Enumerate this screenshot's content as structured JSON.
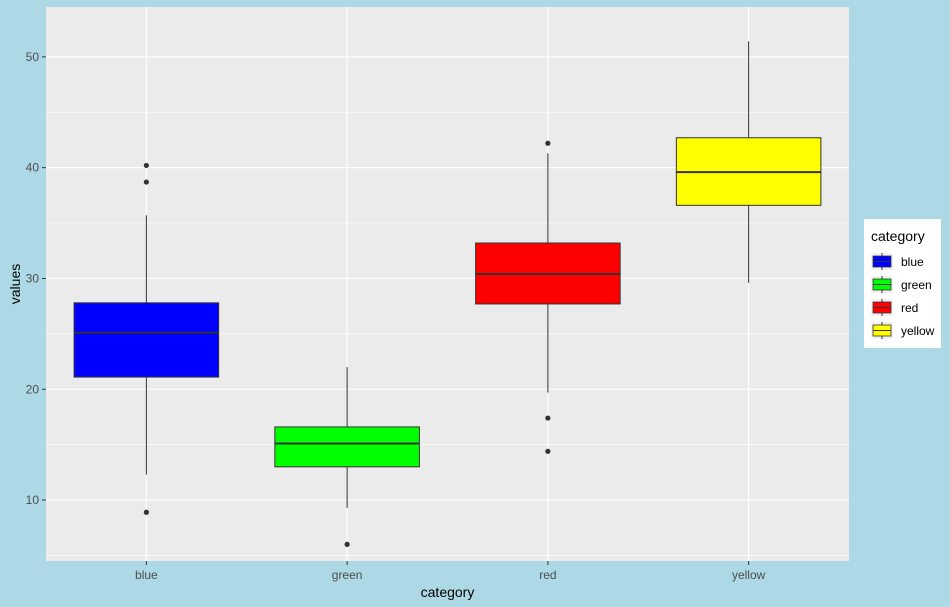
{
  "chart_data": {
    "type": "box",
    "xlabel": "category",
    "ylabel": "values",
    "categories": [
      "blue",
      "green",
      "red",
      "yellow"
    ],
    "ylim": [
      4.5,
      54.5
    ],
    "y_ticks": [
      10,
      20,
      30,
      40,
      50
    ],
    "grid": true,
    "legend": {
      "title": "category",
      "position": "right"
    },
    "colors": {
      "blue": "#0000ff",
      "green": "#00ff00",
      "red": "#ff0000",
      "yellow": "#ffff00",
      "panel_background": "#ebebeb",
      "page_background": "#add8e6"
    },
    "boxes": [
      {
        "category": "blue",
        "whisker_low": 12.3,
        "q1": 21.1,
        "median": 25.1,
        "q3": 27.8,
        "whisker_high": 35.7,
        "outliers": [
          8.9,
          38.7,
          40.2
        ]
      },
      {
        "category": "green",
        "whisker_low": 9.3,
        "q1": 13.0,
        "median": 15.1,
        "q3": 16.6,
        "whisker_high": 22.0,
        "outliers": [
          6.0
        ]
      },
      {
        "category": "red",
        "whisker_low": 19.7,
        "q1": 27.7,
        "median": 30.4,
        "q3": 33.2,
        "whisker_high": 41.3,
        "outliers": [
          14.4,
          17.4,
          42.2
        ]
      },
      {
        "category": "yellow",
        "whisker_low": 29.6,
        "q1": 36.6,
        "median": 39.6,
        "q3": 42.7,
        "whisker_high": 51.4,
        "outliers": []
      }
    ]
  }
}
